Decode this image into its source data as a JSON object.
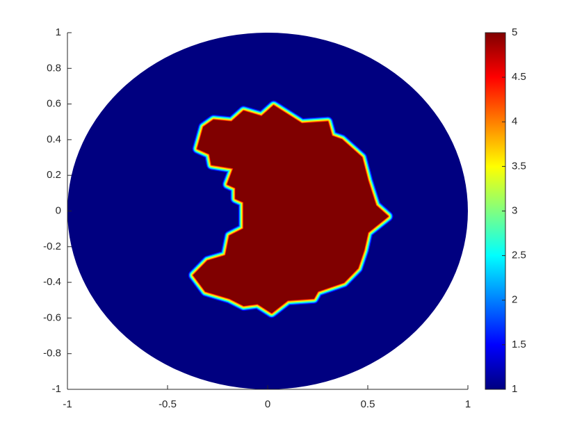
{
  "chart_data": {
    "type": "field",
    "colormap": "jet",
    "background_value": 1,
    "inclusion": {
      "value": 5,
      "x": [
        -0.35,
        -0.32,
        -0.27,
        -0.18,
        -0.12,
        -0.03,
        0.03,
        0.17,
        0.3,
        0.32,
        0.37,
        0.47,
        0.5,
        0.54,
        0.6,
        0.5,
        0.48,
        0.45,
        0.38,
        0.25,
        0.23,
        0.1,
        0.02,
        -0.05,
        -0.12,
        -0.19,
        -0.31,
        -0.37,
        -0.3,
        -0.21,
        -0.19,
        -0.12,
        -0.12,
        -0.16,
        -0.16,
        -0.2,
        -0.17,
        -0.28,
        -0.29
      ],
      "y": [
        0.35,
        0.47,
        0.51,
        0.5,
        0.56,
        0.53,
        0.59,
        0.49,
        0.5,
        0.42,
        0.4,
        0.3,
        0.17,
        0.03,
        -0.03,
        -0.12,
        -0.22,
        -0.32,
        -0.4,
        -0.45,
        -0.49,
        -0.5,
        -0.57,
        -0.52,
        -0.53,
        -0.49,
        -0.45,
        -0.36,
        -0.28,
        -0.25,
        -0.14,
        -0.1,
        0.05,
        0.07,
        0.13,
        0.15,
        0.24,
        0.26,
        0.32
      ]
    },
    "xlim": [
      -1,
      1
    ],
    "ylim": [
      -1,
      1
    ],
    "xticks": [
      -1,
      -0.5,
      0,
      0.5,
      1
    ],
    "yticks": [
      -1,
      -0.8,
      -0.6,
      -0.4,
      -0.2,
      0,
      0.2,
      0.4,
      0.6,
      0.8,
      1
    ],
    "colorbar": {
      "clim": [
        1,
        5
      ],
      "ticks": [
        1,
        1.5,
        2,
        2.5,
        3,
        3.5,
        4,
        4.5,
        5
      ]
    }
  }
}
